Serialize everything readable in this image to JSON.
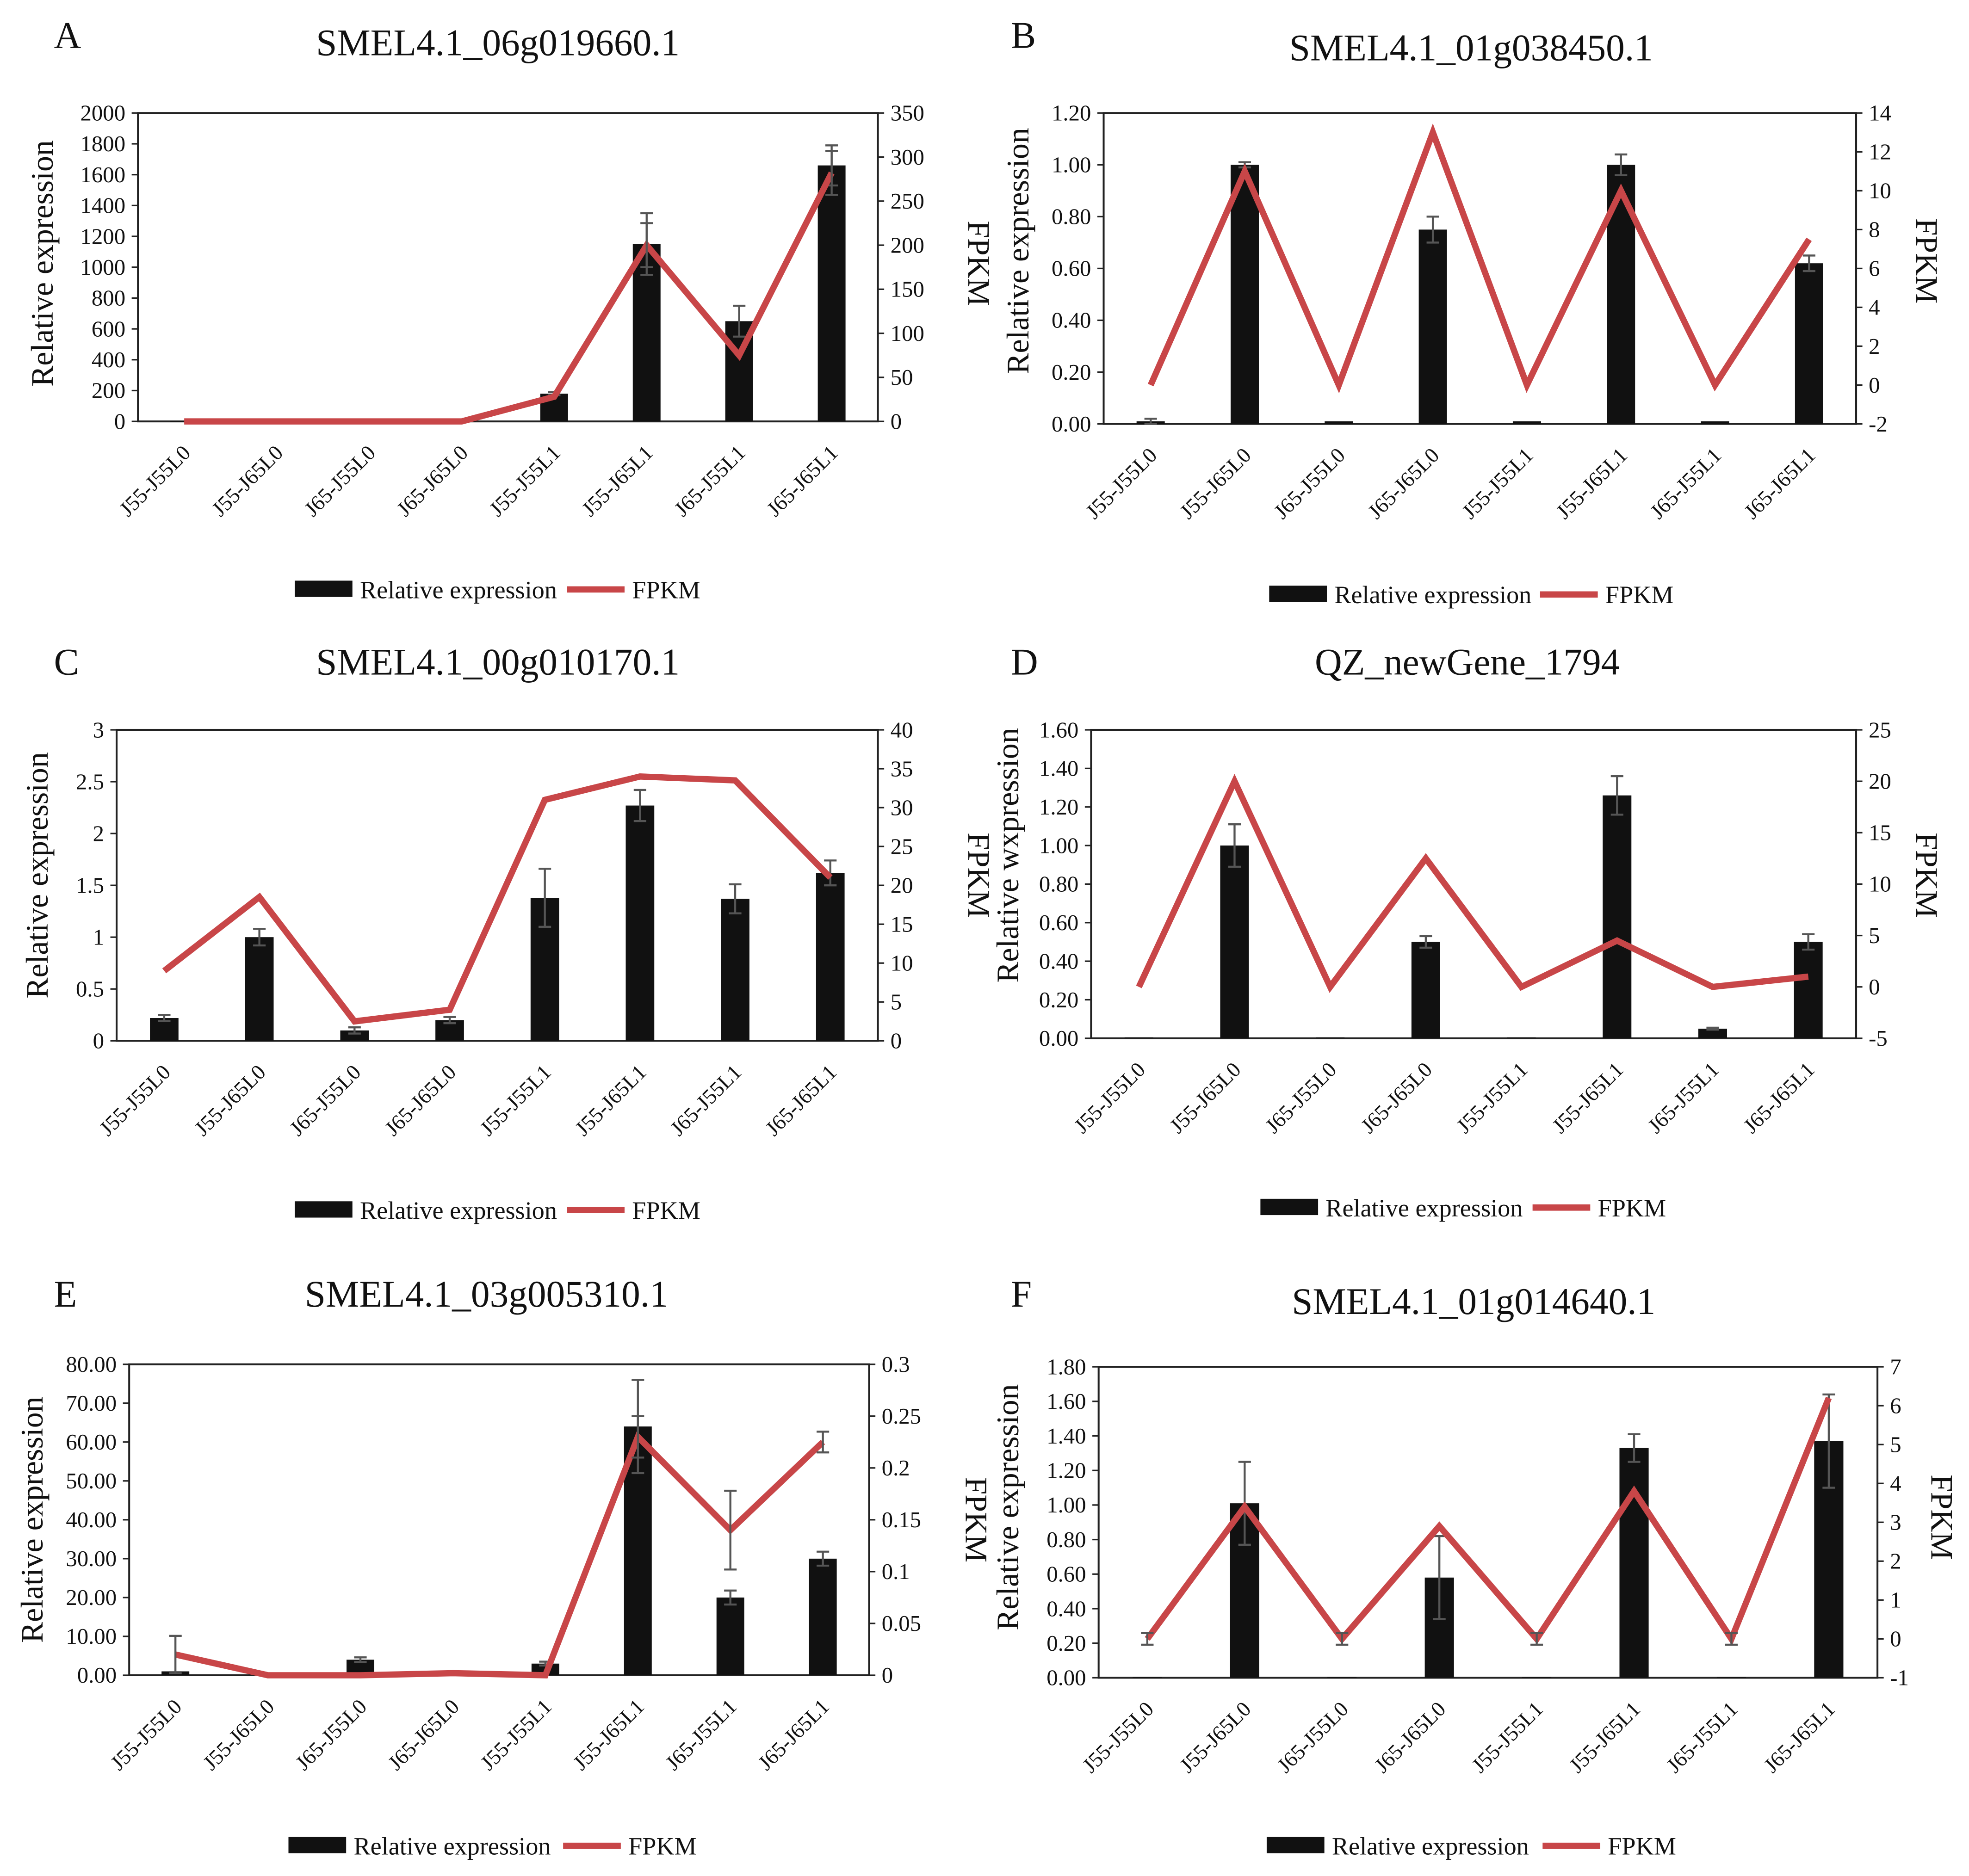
{
  "colors": {
    "bar": "#111111",
    "line": "#c84648",
    "axis": "#222222",
    "error": "#555555"
  },
  "chart_data": [
    {
      "panel": "A",
      "type": "bar+line",
      "title": "SMEL4.1_06g019660.1",
      "categories": [
        "J55-J55L0",
        "J55-J65L0",
        "J65-J55L0",
        "J65-J65L0",
        "J55-J55L1",
        "J55-J65L1",
        "J65-J55L1",
        "J65-J65L1"
      ],
      "ylabel": "Relative expression",
      "y2label": "FPKM",
      "yticks": [
        "0",
        "200",
        "400",
        "600",
        "800",
        "1000",
        "1200",
        "1400",
        "1600",
        "1800",
        "2000"
      ],
      "y2ticks": [
        "0",
        "50",
        "100",
        "150",
        "200",
        "250",
        "300",
        "350"
      ],
      "ylim": [
        0,
        2000
      ],
      "y2lim": [
        0,
        350
      ],
      "series": [
        {
          "name": "Relative expression",
          "kind": "bar",
          "axis": "left",
          "values": [
            1,
            1,
            1,
            1,
            180,
            1150,
            650,
            1660
          ],
          "errors": [
            0,
            0,
            0,
            0,
            10,
            200,
            100,
            130
          ]
        },
        {
          "name": "FPKM",
          "kind": "line",
          "axis": "right",
          "values": [
            0,
            0,
            0,
            0,
            28,
            200,
            75,
            282
          ],
          "errors": [
            0,
            0,
            0,
            0,
            0,
            25,
            0,
            25
          ]
        }
      ],
      "legend": [
        "Relative expression",
        "FPKM"
      ]
    },
    {
      "panel": "B",
      "type": "bar+line",
      "title": "SMEL4.1_01g038450.1",
      "categories": [
        "J55-J55L0",
        "J55-J65L0",
        "J65-J55L0",
        "J65-J65L0",
        "J55-J55L1",
        "J55-J65L1",
        "J65-J55L1",
        "J65-J65L1"
      ],
      "ylabel": "Relative expression",
      "y2label": "FPKM",
      "yticks": [
        "0.00",
        "0.20",
        "0.40",
        "0.60",
        "0.80",
        "1.00",
        "1.20"
      ],
      "y2ticks": [
        "-2",
        "0",
        "2",
        "4",
        "6",
        "8",
        "10",
        "12",
        "14"
      ],
      "ylim": [
        0,
        1.2
      ],
      "y2lim": [
        -2,
        14
      ],
      "series": [
        {
          "name": "Relative expression",
          "kind": "bar",
          "axis": "left",
          "values": [
            0.01,
            1.0,
            0.01,
            0.75,
            0.01,
            1.0,
            0.01,
            0.62
          ],
          "errors": [
            0.01,
            0.01,
            0,
            0.05,
            0,
            0.04,
            0,
            0.03
          ]
        },
        {
          "name": "FPKM",
          "kind": "line",
          "axis": "right",
          "values": [
            0,
            11,
            0,
            13,
            0,
            10,
            0,
            7.5
          ],
          "errors": [
            0,
            0,
            0,
            0,
            0,
            0,
            0,
            0
          ]
        }
      ],
      "legend": [
        "Relative expression",
        "FPKM"
      ]
    },
    {
      "panel": "C",
      "type": "bar+line",
      "title": "SMEL4.1_00g010170.1",
      "categories": [
        "J55-J55L0",
        "J55-J65L0",
        "J65-J55L0",
        "J65-J65L0",
        "J55-J55L1",
        "J55-J65L1",
        "J65-J55L1",
        "J65-J65L1"
      ],
      "ylabel": "Relative expression",
      "y2label": "FPKM",
      "yticks": [
        "0",
        "0.5",
        "1",
        "1.5",
        "2",
        "2.5",
        "3"
      ],
      "y2ticks": [
        "0",
        "5",
        "10",
        "15",
        "20",
        "25",
        "30",
        "35",
        "40"
      ],
      "ylim": [
        0,
        3
      ],
      "y2lim": [
        0,
        40
      ],
      "series": [
        {
          "name": "Relative expression",
          "kind": "bar",
          "axis": "left",
          "values": [
            0.22,
            1.0,
            0.1,
            0.2,
            1.38,
            2.27,
            1.37,
            1.62
          ],
          "errors": [
            0.03,
            0.08,
            0.03,
            0.03,
            0.28,
            0.15,
            0.14,
            0.12
          ]
        },
        {
          "name": "FPKM",
          "kind": "line",
          "axis": "right",
          "values": [
            9,
            18.5,
            2.5,
            4,
            31,
            34,
            33.5,
            21
          ],
          "errors": [
            0,
            0,
            0,
            0,
            0,
            0,
            0,
            0
          ]
        }
      ],
      "legend": [
        "Relative expression",
        "FPKM"
      ]
    },
    {
      "panel": "D",
      "type": "bar+line",
      "title": "QZ_newGene_1794",
      "categories": [
        "J55-J55L0",
        "J55-J65L0",
        "J65-J55L0",
        "J65-J65L0",
        "J55-J55L1",
        "J55-J65L1",
        "J65-J55L1",
        "J65-J65L1"
      ],
      "ylabel": "Relative wxpression",
      "y2label": "FPKM",
      "yticks": [
        "0.00",
        "0.20",
        "0.40",
        "0.60",
        "0.80",
        "1.00",
        "1.20",
        "1.40",
        "1.60"
      ],
      "y2ticks": [
        "-5",
        "0",
        "5",
        "10",
        "15",
        "20",
        "25"
      ],
      "ylim": [
        0,
        1.6
      ],
      "y2lim": [
        -5,
        25
      ],
      "series": [
        {
          "name": "Relative expression",
          "kind": "bar",
          "axis": "left",
          "values": [
            0.005,
            1.0,
            0.005,
            0.5,
            0.005,
            1.26,
            0.05,
            0.5
          ],
          "errors": [
            0,
            0.11,
            0,
            0.03,
            0,
            0.1,
            0.005,
            0.04
          ]
        },
        {
          "name": "FPKM",
          "kind": "line",
          "axis": "right",
          "values": [
            0,
            20,
            0,
            12.5,
            0,
            4.5,
            0,
            1
          ],
          "errors": [
            0,
            0,
            0,
            0,
            0,
            0,
            0,
            0
          ]
        }
      ],
      "legend": [
        "Relative expression",
        "FPKM"
      ]
    },
    {
      "panel": "E",
      "type": "bar+line",
      "title": "SMEL4.1_03g005310.1",
      "categories": [
        "J55-J55L0",
        "J55-J65L0",
        "J65-J55L0",
        "J65-J65L0",
        "J55-J55L1",
        "J55-J65L1",
        "J65-J55L1",
        "J65-J65L1"
      ],
      "ylabel": "Relative expression",
      "y2label": "FPKM",
      "yticks": [
        "0.00",
        "10.00",
        "20.00",
        "30.00",
        "40.00",
        "50.00",
        "60.00",
        "70.00",
        "80.00"
      ],
      "y2ticks": [
        "0",
        "0.05",
        "0.1",
        "0.15",
        "0.2",
        "0.25",
        "0.3"
      ],
      "ylim": [
        0,
        80
      ],
      "y2lim": [
        0,
        0.3
      ],
      "series": [
        {
          "name": "Relative expression",
          "kind": "bar",
          "axis": "left",
          "values": [
            1,
            0.2,
            4,
            1,
            3,
            64,
            20,
            30
          ],
          "errors": [
            0,
            0,
            0.6,
            0,
            0.5,
            12,
            1.8,
            1.8
          ]
        },
        {
          "name": "FPKM",
          "kind": "line",
          "axis": "right",
          "values": [
            0.02,
            0,
            0,
            0.002,
            0,
            0.23,
            0.14,
            0.225
          ],
          "errors": [
            0.018,
            0,
            0,
            0,
            0,
            0.02,
            0.038,
            0.01
          ]
        }
      ],
      "legend": [
        "Relative expression",
        "FPKM"
      ]
    },
    {
      "panel": "F",
      "type": "bar+line",
      "title": "SMEL4.1_01g014640.1",
      "categories": [
        "J55-J55L0",
        "J55-J65L0",
        "J65-J55L0",
        "J65-J65L0",
        "J55-J55L1",
        "J55-J65L1",
        "J65-J55L1",
        "J65-J65L1"
      ],
      "ylabel": "Relative expression",
      "y2label": "FPKM",
      "yticks": [
        "0.00",
        "0.20",
        "0.40",
        "0.60",
        "0.80",
        "1.00",
        "1.20",
        "1.40",
        "1.60",
        "1.80"
      ],
      "y2ticks": [
        "-1",
        "0",
        "1",
        "2",
        "3",
        "4",
        "5",
        "6",
        "7"
      ],
      "ylim": [
        0,
        1.8
      ],
      "y2lim": [
        -1,
        7
      ],
      "series": [
        {
          "name": "Relative expression",
          "kind": "bar",
          "axis": "left",
          "values": [
            0.005,
            1.01,
            0.005,
            0.58,
            0.005,
            1.33,
            0.005,
            1.37
          ],
          "errors": [
            0,
            0.24,
            0,
            0.24,
            0,
            0.08,
            0,
            0.27
          ]
        },
        {
          "name": "FPKM",
          "kind": "line",
          "axis": "right",
          "values": [
            0,
            3.4,
            0,
            2.9,
            0,
            3.8,
            0,
            6.2
          ],
          "errors": [
            0.15,
            0,
            0.15,
            0,
            0.15,
            0,
            0.15,
            0
          ]
        }
      ],
      "legend": [
        "Relative expression",
        "FPKM"
      ]
    }
  ]
}
